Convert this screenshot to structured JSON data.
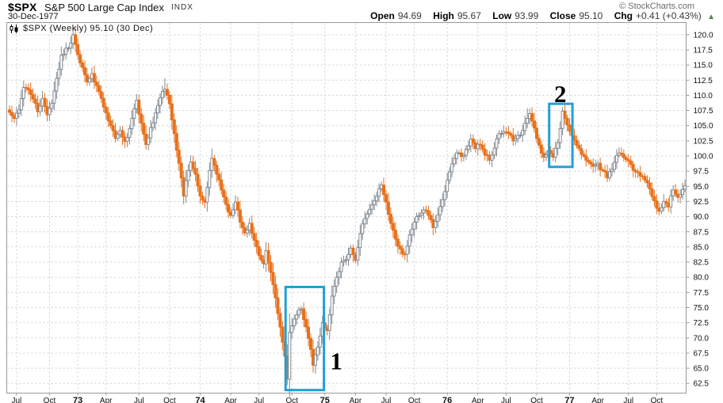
{
  "header": {
    "symbol": "$SPX",
    "title": "S&P 500 Large Cap Index",
    "exchange": "INDX",
    "date": "30-Dec-1977",
    "copyright": "© StockCharts.com",
    "quote": {
      "open_label": "Open",
      "open": "94.69",
      "high_label": "High",
      "high": "95.67",
      "low_label": "Low",
      "low": "93.99",
      "close_label": "Close",
      "close": "95.10",
      "chg_label": "Chg",
      "chg": "+0.41 (+0.43%)",
      "direction_icon": "▲"
    }
  },
  "legend": {
    "text": "$SPX (Weekly) 95.10 (30 Dec)"
  },
  "chart_data": {
    "type": "candlestick",
    "timeframe": "weekly",
    "title": "$SPX S&P 500 Large Cap Index (Weekly)",
    "x_range": [
      "Jul 1972",
      "30 Dec 1977"
    ],
    "last_close": 95.1,
    "ylim": [
      60.9,
      122.0
    ],
    "grid": true,
    "y_ticks": [
      120.0,
      117.5,
      115.0,
      112.5,
      110.0,
      107.5,
      105.0,
      102.5,
      100.0,
      97.5,
      95.0,
      92.5,
      90.0,
      87.5,
      85.0,
      82.5,
      80.0,
      77.5,
      75.0,
      72.5,
      70.0,
      67.5,
      65.0,
      62.5
    ],
    "x_ticks": [
      {
        "label": "Jul",
        "week": 3,
        "bold": false
      },
      {
        "label": "Oct",
        "week": 17,
        "bold": false
      },
      {
        "label": "73",
        "week": 29,
        "bold": true
      },
      {
        "label": "Apr",
        "week": 41,
        "bold": false
      },
      {
        "label": "Jul",
        "week": 55,
        "bold": false
      },
      {
        "label": "Oct",
        "week": 68,
        "bold": false
      },
      {
        "label": "74",
        "week": 81,
        "bold": true
      },
      {
        "label": "Apr",
        "week": 94,
        "bold": false
      },
      {
        "label": "Jul",
        "week": 106,
        "bold": false
      },
      {
        "label": "Oct",
        "week": 120,
        "bold": false
      },
      {
        "label": "75",
        "week": 134,
        "bold": true
      },
      {
        "label": "Apr",
        "week": 147,
        "bold": false
      },
      {
        "label": "Jul",
        "week": 160,
        "bold": false
      },
      {
        "label": "Oct",
        "week": 172,
        "bold": false
      },
      {
        "label": "76",
        "week": 186,
        "bold": true
      },
      {
        "label": "Apr",
        "week": 199,
        "bold": false
      },
      {
        "label": "Jul",
        "week": 211,
        "bold": false
      },
      {
        "label": "Oct",
        "week": 224,
        "bold": false
      },
      {
        "label": "77",
        "week": 238,
        "bold": true
      },
      {
        "label": "Apr",
        "week": 250,
        "bold": false
      },
      {
        "label": "Jul",
        "week": 263,
        "bold": false
      },
      {
        "label": "Oct",
        "week": 275,
        "bold": false
      }
    ],
    "weeks_total": 288,
    "anchors_note": "approximate weekly closes [weekIndex, close]; week 0 = end Jun 1972",
    "anchors": [
      [
        0,
        107.2
      ],
      [
        2,
        106.2
      ],
      [
        4,
        107.6
      ],
      [
        6,
        111.3
      ],
      [
        8,
        110.9
      ],
      [
        10,
        109.4
      ],
      [
        12,
        107.3
      ],
      [
        14,
        109.5
      ],
      [
        16,
        106.8
      ],
      [
        18,
        108.7
      ],
      [
        20,
        112.8
      ],
      [
        22,
        116.6
      ],
      [
        24,
        117.8
      ],
      [
        26,
        118.6
      ],
      [
        27,
        120.0
      ],
      [
        29,
        116.7
      ],
      [
        31,
        114.6
      ],
      [
        33,
        112.2
      ],
      [
        35,
        113.6
      ],
      [
        37,
        111.6
      ],
      [
        39,
        109.5
      ],
      [
        41,
        107.1
      ],
      [
        43,
        105.0
      ],
      [
        45,
        102.9
      ],
      [
        47,
        104.2
      ],
      [
        49,
        102.4
      ],
      [
        51,
        104.5
      ],
      [
        54,
        109.2
      ],
      [
        56,
        105.4
      ],
      [
        58,
        101.9
      ],
      [
        60,
        104.7
      ],
      [
        62,
        107.1
      ],
      [
        64,
        109.6
      ],
      [
        66,
        111.0
      ],
      [
        68,
        108.6
      ],
      [
        70,
        103.7
      ],
      [
        72,
        98.8
      ],
      [
        74,
        93.4
      ],
      [
        76,
        97.6
      ],
      [
        77,
        99.0
      ],
      [
        79,
        97.0
      ],
      [
        81,
        93.4
      ],
      [
        83,
        92.4
      ],
      [
        85,
        97.6
      ],
      [
        86,
        99.6
      ],
      [
        88,
        97.0
      ],
      [
        90,
        94.4
      ],
      [
        92,
        92.0
      ],
      [
        94,
        90.2
      ],
      [
        96,
        92.4
      ],
      [
        98,
        89.1
      ],
      [
        100,
        87.3
      ],
      [
        102,
        88.9
      ],
      [
        104,
        86.1
      ],
      [
        106,
        83.6
      ],
      [
        108,
        82.2
      ],
      [
        109,
        84.4
      ],
      [
        111,
        80.8
      ],
      [
        113,
        76.6
      ],
      [
        115,
        71.8
      ],
      [
        117,
        67.0
      ],
      [
        118,
        63.2
      ],
      [
        119,
        70.9
      ],
      [
        120,
        72.0
      ],
      [
        122,
        73.8
      ],
      [
        124,
        74.8
      ],
      [
        126,
        71.8
      ],
      [
        128,
        68.1
      ],
      [
        129,
        65.5
      ],
      [
        131,
        68.5
      ],
      [
        133,
        72.5
      ],
      [
        135,
        71.2
      ],
      [
        137,
        76.9
      ],
      [
        139,
        80.0
      ],
      [
        141,
        82.5
      ],
      [
        143,
        82.9
      ],
      [
        145,
        84.8
      ],
      [
        147,
        82.8
      ],
      [
        149,
        87.2
      ],
      [
        151,
        89.7
      ],
      [
        153,
        91.2
      ],
      [
        155,
        92.6
      ],
      [
        157,
        94.6
      ],
      [
        158,
        95.2
      ],
      [
        160,
        92.4
      ],
      [
        162,
        88.9
      ],
      [
        164,
        86.3
      ],
      [
        166,
        84.7
      ],
      [
        168,
        83.8
      ],
      [
        170,
        87.0
      ],
      [
        172,
        89.1
      ],
      [
        174,
        90.2
      ],
      [
        176,
        91.1
      ],
      [
        178,
        90.2
      ],
      [
        180,
        88.2
      ],
      [
        182,
        90.3
      ],
      [
        184,
        92.8
      ],
      [
        186,
        96.0
      ],
      [
        188,
        98.7
      ],
      [
        190,
        100.5
      ],
      [
        192,
        99.9
      ],
      [
        194,
        101.1
      ],
      [
        196,
        102.8
      ],
      [
        198,
        101.2
      ],
      [
        200,
        101.8
      ],
      [
        202,
        100.2
      ],
      [
        204,
        99.3
      ],
      [
        206,
        101.3
      ],
      [
        208,
        103.7
      ],
      [
        210,
        104.0
      ],
      [
        212,
        103.7
      ],
      [
        214,
        102.5
      ],
      [
        216,
        103.4
      ],
      [
        218,
        104.2
      ],
      [
        220,
        106.2
      ],
      [
        221,
        107.0
      ],
      [
        223,
        104.6
      ],
      [
        225,
        101.8
      ],
      [
        227,
        99.8
      ],
      [
        229,
        100.9
      ],
      [
        231,
        99.8
      ],
      [
        233,
        102.2
      ],
      [
        235,
        107.4
      ],
      [
        236,
        106.2
      ],
      [
        238,
        104.1
      ],
      [
        240,
        102.6
      ],
      [
        242,
        101.2
      ],
      [
        244,
        100.0
      ],
      [
        246,
        99.0
      ],
      [
        248,
        98.3
      ],
      [
        250,
        98.8
      ],
      [
        252,
        97.6
      ],
      [
        254,
        96.4
      ],
      [
        256,
        97.8
      ],
      [
        258,
        100.1
      ],
      [
        260,
        100.3
      ],
      [
        262,
        99.4
      ],
      [
        264,
        98.6
      ],
      [
        266,
        97.4
      ],
      [
        268,
        96.7
      ],
      [
        270,
        96.0
      ],
      [
        272,
        94.6
      ],
      [
        274,
        92.6
      ],
      [
        276,
        90.9
      ],
      [
        278,
        92.5
      ],
      [
        280,
        91.6
      ],
      [
        282,
        94.4
      ],
      [
        284,
        93.2
      ],
      [
        286,
        94.5
      ],
      [
        287,
        95.1
      ]
    ],
    "wick_overrides": {
      "27": {
        "high": 121.2
      },
      "66": {
        "high": 112.8
      },
      "74": {
        "low": 92.0
      },
      "83": {
        "low": 91.4
      },
      "86": {
        "high": 101.2
      },
      "118": {
        "low": 62.2
      },
      "158": {
        "high": 95.8
      },
      "220": {
        "high": 107.9
      },
      "235": {
        "high": 108.1
      },
      "276": {
        "low": 90.2
      }
    },
    "annotations": [
      {
        "label": "1",
        "week_start": 117.3,
        "week_end": 133.6,
        "price_low": 61.4,
        "price_high": 78.4,
        "label_week": 136.2,
        "label_price": 64.8
      },
      {
        "label": "2",
        "week_start": 229.3,
        "week_end": 239.2,
        "price_low": 98.2,
        "price_high": 108.6,
        "label_week": 231.4,
        "label_price": 108.9
      }
    ],
    "colors": {
      "up_candle": "#828a92",
      "down_candle": "#e8701b",
      "annotation_box": "#219fd7",
      "grid": "#cfcfcf",
      "frame": "#9a9a9a",
      "axis_text": "#111111",
      "annotation_text": "#000000"
    }
  }
}
